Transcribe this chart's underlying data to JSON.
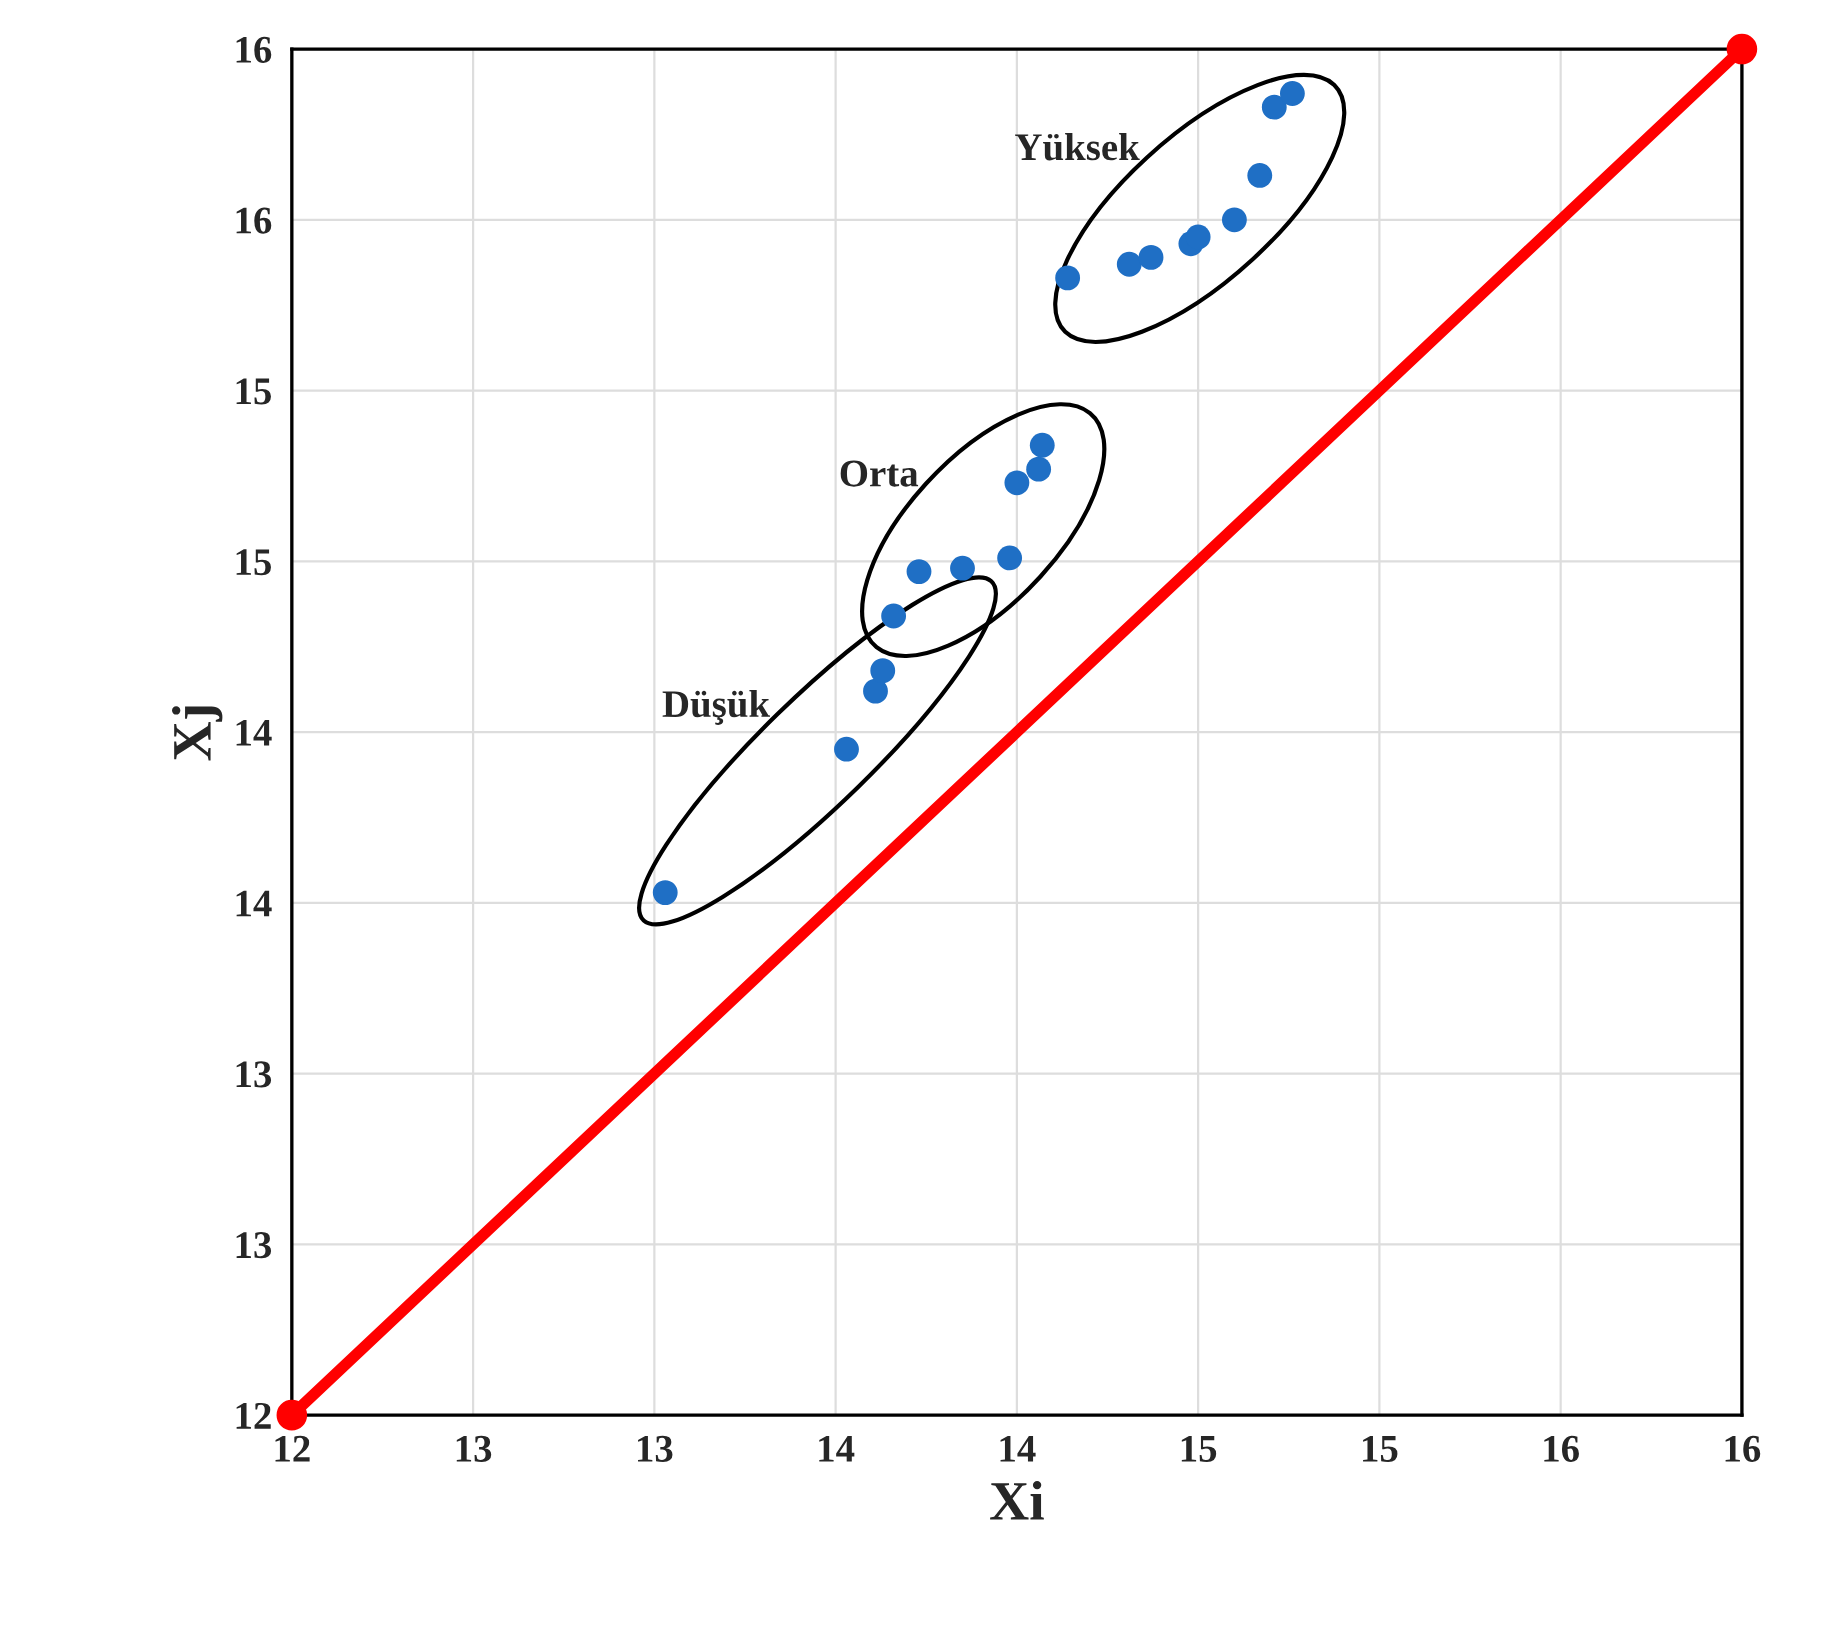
{
  "chart_data": {
    "type": "scatter",
    "xlabel": "Xi",
    "ylabel": "Xj",
    "xlim": [
      12,
      16
    ],
    "ylim": [
      12,
      16
    ],
    "xticks": [
      {
        "value": 12,
        "label": "12"
      },
      {
        "value": 12.5,
        "label": "13"
      },
      {
        "value": 13,
        "label": "13"
      },
      {
        "value": 13.5,
        "label": "14"
      },
      {
        "value": 14,
        "label": "14"
      },
      {
        "value": 14.5,
        "label": "15"
      },
      {
        "value": 15,
        "label": "15"
      },
      {
        "value": 15.5,
        "label": "16"
      },
      {
        "value": 16,
        "label": "16"
      }
    ],
    "yticks": [
      {
        "value": 12,
        "label": "12"
      },
      {
        "value": 12.5,
        "label": "13"
      },
      {
        "value": 13,
        "label": "13"
      },
      {
        "value": 13.5,
        "label": "14"
      },
      {
        "value": 14,
        "label": "14"
      },
      {
        "value": 14.5,
        "label": "15"
      },
      {
        "value": 15,
        "label": "15"
      },
      {
        "value": 15.5,
        "label": "16"
      },
      {
        "value": 16,
        "label": "16"
      }
    ],
    "grid": true,
    "marker": "circle",
    "series": [
      {
        "name": "Düşük",
        "color": "#1f6fc5",
        "x": [
          13.03,
          13.53,
          13.61,
          13.63
        ],
        "values": [
          13.53,
          13.95,
          14.12,
          14.18
        ]
      },
      {
        "name": "Orta",
        "color": "#1f6fc5",
        "x": [
          13.66,
          13.73,
          13.85,
          13.98,
          14.0,
          14.06,
          14.07
        ],
        "values": [
          14.34,
          14.47,
          14.48,
          14.51,
          14.73,
          14.77,
          14.84
        ]
      },
      {
        "name": "Yüksek",
        "color": "#1f6fc5",
        "x": [
          14.14,
          14.31,
          14.37,
          14.48,
          14.5,
          14.6,
          14.67,
          14.71,
          14.76
        ],
        "values": [
          15.33,
          15.37,
          15.39,
          15.43,
          15.45,
          15.5,
          15.63,
          15.83,
          15.87
        ]
      },
      {
        "type": "line",
        "color": "#ff0000",
        "marker": "circle",
        "x": [
          12,
          16
        ],
        "values": [
          12,
          16
        ]
      }
    ]
  }
}
